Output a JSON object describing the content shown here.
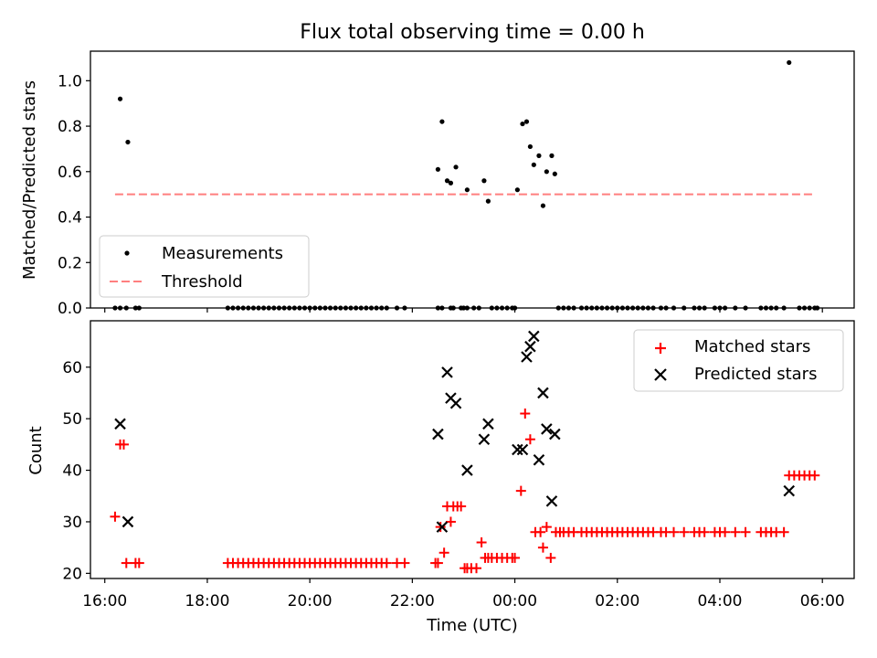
{
  "chart_data": [
    {
      "type": "scatter",
      "title": "Flux total observing time = 0.00 h",
      "xlabel": "",
      "ylabel": "Matched/Predicted stars",
      "xlim": [
        15.72,
        30.62
      ],
      "ylim": [
        0,
        1.13
      ],
      "yticks": [
        "0.0",
        "0.2",
        "0.4",
        "0.6",
        "0.8",
        "1.0"
      ],
      "legend": {
        "position": "lower-left",
        "entries": [
          "Measurements",
          "Threshold"
        ]
      },
      "threshold": {
        "name": "Threshold",
        "y": 0.5,
        "x_start": 16.2,
        "x_end": 29.85,
        "color": "#ff7f7f"
      },
      "series": [
        {
          "name": "Measurements",
          "marker": "dot",
          "color": "#000000",
          "x": [
            16.3,
            16.45,
            22.5,
            22.58,
            22.68,
            22.75,
            22.85,
            23.07,
            23.4,
            23.48,
            24.05,
            24.15,
            24.23,
            24.3,
            24.37,
            24.47,
            24.55,
            24.62,
            24.72,
            24.78,
            29.35
          ],
          "y": [
            0.92,
            0.73,
            0.61,
            0.82,
            0.56,
            0.55,
            0.62,
            0.52,
            0.56,
            0.47,
            0.52,
            0.81,
            0.82,
            0.71,
            0.63,
            0.67,
            0.45,
            0.6,
            0.67,
            0.59,
            1.08
          ]
        },
        {
          "name": "Measurements (zero)",
          "marker": "dot",
          "color": "#000000",
          "x": [
            16.2,
            16.3,
            16.42,
            16.6,
            16.67,
            18.4,
            18.5,
            18.6,
            18.7,
            18.8,
            18.9,
            19.0,
            19.1,
            19.2,
            19.3,
            19.4,
            19.5,
            19.6,
            19.7,
            19.8,
            19.9,
            20.0,
            20.1,
            20.2,
            20.3,
            20.4,
            20.5,
            20.6,
            20.7,
            20.8,
            20.9,
            21.0,
            21.1,
            21.2,
            21.3,
            21.4,
            21.5,
            21.7,
            21.85,
            22.5,
            22.58,
            22.75,
            22.8,
            22.95,
            23.0,
            23.07,
            23.2,
            23.3,
            23.55,
            23.65,
            23.75,
            23.85,
            23.95,
            24.0,
            24.85,
            24.95,
            25.05,
            25.15,
            25.3,
            25.4,
            25.5,
            25.6,
            25.7,
            25.8,
            25.9,
            26.0,
            26.1,
            26.2,
            26.3,
            26.4,
            26.5,
            26.6,
            26.7,
            26.85,
            26.95,
            27.1,
            27.3,
            27.5,
            27.6,
            27.7,
            27.9,
            28.0,
            28.1,
            28.3,
            28.5,
            28.8,
            28.9,
            29.0,
            29.1,
            29.25,
            29.55,
            29.65,
            29.75,
            29.85,
            29.9
          ],
          "y": [
            0,
            0,
            0,
            0,
            0,
            0,
            0,
            0,
            0,
            0,
            0,
            0,
            0,
            0,
            0,
            0,
            0,
            0,
            0,
            0,
            0,
            0,
            0,
            0,
            0,
            0,
            0,
            0,
            0,
            0,
            0,
            0,
            0,
            0,
            0,
            0,
            0,
            0,
            0,
            0,
            0,
            0,
            0,
            0,
            0,
            0,
            0,
            0,
            0,
            0,
            0,
            0,
            0,
            0,
            0,
            0,
            0,
            0,
            0,
            0,
            0,
            0,
            0,
            0,
            0,
            0,
            0,
            0,
            0,
            0,
            0,
            0,
            0,
            0,
            0,
            0,
            0,
            0,
            0,
            0,
            0,
            0,
            0,
            0,
            0,
            0,
            0,
            0,
            0,
            0,
            0,
            0,
            0,
            0,
            0
          ]
        }
      ]
    },
    {
      "type": "scatter",
      "xlabel": "Time (UTC)",
      "ylabel": "Count",
      "xlim": [
        15.72,
        30.62
      ],
      "ylim": [
        19,
        69
      ],
      "xtick_values": [
        16,
        18,
        20,
        22,
        24,
        26,
        28,
        30
      ],
      "xticks": [
        "16:00",
        "18:00",
        "20:00",
        "22:00",
        "00:00",
        "02:00",
        "04:00",
        "06:00"
      ],
      "ytick_values": [
        20,
        30,
        40,
        50,
        60
      ],
      "yticks": [
        "20",
        "30",
        "40",
        "50",
        "60"
      ],
      "legend": {
        "position": "top-right",
        "entries": [
          "Matched stars",
          "Predicted stars"
        ]
      },
      "series": [
        {
          "name": "Matched stars",
          "marker": "plus",
          "color": "#ff0000",
          "x": [
            16.2,
            16.3,
            16.37,
            16.42,
            16.6,
            16.67,
            18.4,
            18.5,
            18.6,
            18.7,
            18.8,
            18.9,
            19.0,
            19.1,
            19.2,
            19.3,
            19.4,
            19.5,
            19.6,
            19.7,
            19.8,
            19.9,
            20.0,
            20.1,
            20.2,
            20.3,
            20.4,
            20.5,
            20.6,
            20.7,
            20.8,
            20.9,
            21.0,
            21.1,
            21.2,
            21.3,
            21.4,
            21.5,
            21.7,
            21.85,
            22.45,
            22.5,
            22.55,
            22.62,
            22.68,
            22.75,
            22.8,
            22.88,
            22.95,
            23.02,
            23.07,
            23.15,
            23.25,
            23.35,
            23.42,
            23.48,
            23.55,
            23.65,
            23.75,
            23.85,
            23.95,
            24.0,
            24.12,
            24.2,
            24.3,
            24.4,
            24.5,
            24.55,
            24.62,
            24.7,
            24.8,
            24.88,
            24.95,
            25.05,
            25.15,
            25.3,
            25.4,
            25.5,
            25.6,
            25.7,
            25.8,
            25.9,
            26.0,
            26.1,
            26.2,
            26.3,
            26.4,
            26.5,
            26.6,
            26.7,
            26.85,
            26.95,
            27.1,
            27.3,
            27.5,
            27.6,
            27.7,
            27.9,
            28.0,
            28.1,
            28.3,
            28.5,
            28.8,
            28.9,
            29.0,
            29.1,
            29.25,
            29.35,
            29.45,
            29.55,
            29.65,
            29.75,
            29.85
          ],
          "y": [
            31,
            45,
            45,
            22,
            22,
            22,
            22,
            22,
            22,
            22,
            22,
            22,
            22,
            22,
            22,
            22,
            22,
            22,
            22,
            22,
            22,
            22,
            22,
            22,
            22,
            22,
            22,
            22,
            22,
            22,
            22,
            22,
            22,
            22,
            22,
            22,
            22,
            22,
            22,
            22,
            22,
            22,
            29,
            24,
            33,
            30,
            33,
            33,
            33,
            21,
            21,
            21,
            21,
            26,
            23,
            23,
            23,
            23,
            23,
            23,
            23,
            23,
            36,
            51,
            46,
            28,
            28,
            25,
            29,
            23,
            28,
            28,
            28,
            28,
            28,
            28,
            28,
            28,
            28,
            28,
            28,
            28,
            28,
            28,
            28,
            28,
            28,
            28,
            28,
            28,
            28,
            28,
            28,
            28,
            28,
            28,
            28,
            28,
            28,
            28,
            28,
            28,
            28,
            28,
            28,
            28,
            28,
            39,
            39,
            39,
            39,
            39,
            39
          ]
        },
        {
          "name": "Predicted stars",
          "marker": "x",
          "color": "#000000",
          "x": [
            16.3,
            16.45,
            22.5,
            22.58,
            22.68,
            22.75,
            22.85,
            23.07,
            23.4,
            23.48,
            24.05,
            24.15,
            24.23,
            24.3,
            24.37,
            24.47,
            24.55,
            24.62,
            24.72,
            24.78,
            29.35
          ],
          "y": [
            49,
            30,
            47,
            29,
            59,
            54,
            53,
            40,
            46,
            49,
            44,
            44,
            62,
            64,
            66,
            42,
            55,
            48,
            34,
            47,
            36
          ]
        }
      ]
    }
  ]
}
